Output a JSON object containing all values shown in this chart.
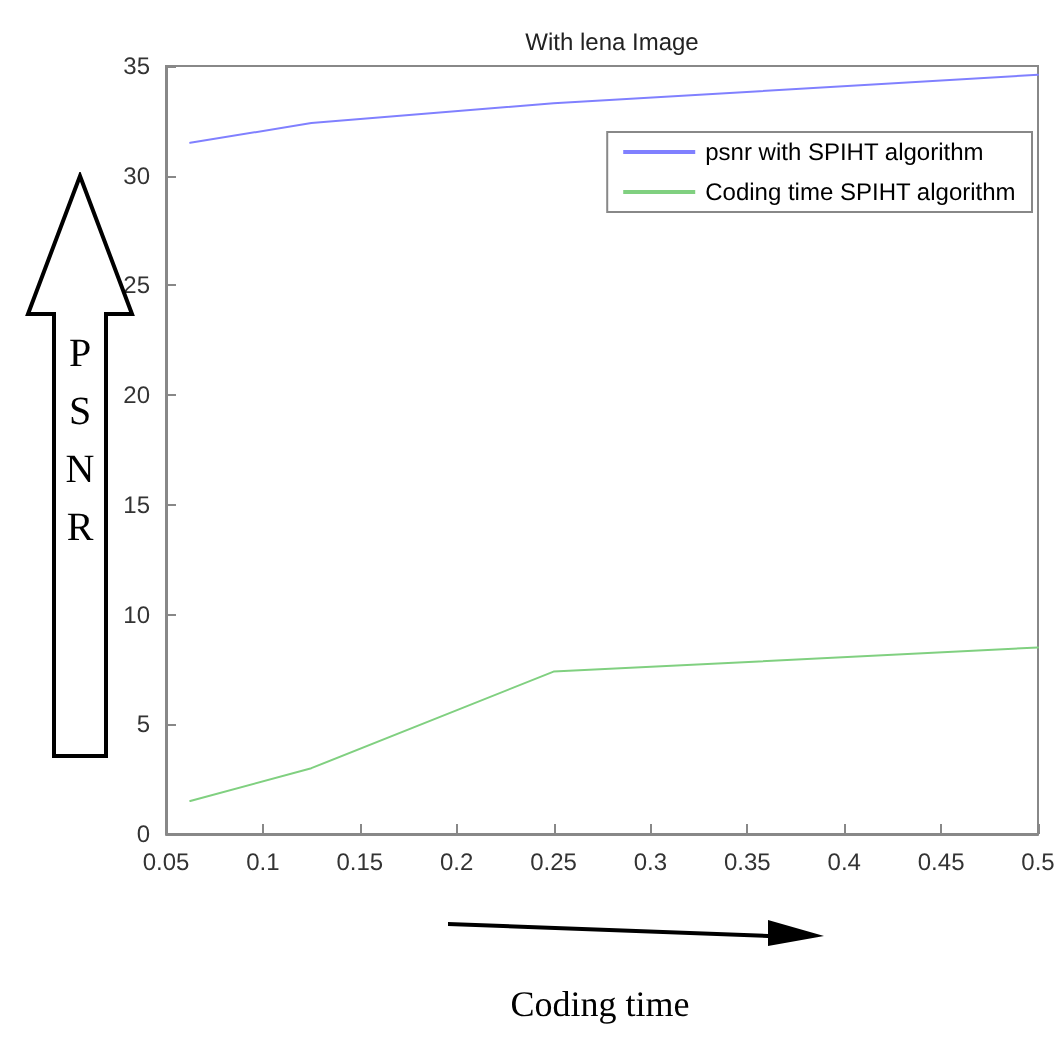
{
  "chart_data": {
    "type": "line",
    "title": "With lena Image",
    "xlabel": "Coding time",
    "ylabel": "PSNR",
    "x": [
      0.0625,
      0.125,
      0.25,
      0.5
    ],
    "series": [
      {
        "name": "psnr with SPIHT algorithm",
        "color": "#8080ff",
        "values": [
          31.5,
          32.4,
          33.3,
          34.6
        ]
      },
      {
        "name": "Coding time SPIHT algorithm",
        "color": "#80d080",
        "values": [
          1.5,
          3.0,
          7.4,
          8.5
        ]
      }
    ],
    "xlim": [
      0.05,
      0.5
    ],
    "xticks": [
      0.05,
      0.1,
      0.15,
      0.2,
      0.25,
      0.3,
      0.35,
      0.4,
      0.45,
      0.5
    ],
    "ylim": [
      0,
      35
    ],
    "yticks": [
      0,
      5,
      10,
      15,
      20,
      25,
      30,
      35
    ],
    "legend": "top right",
    "grid": false,
    "marker": "none",
    "line_style": "solid"
  }
}
